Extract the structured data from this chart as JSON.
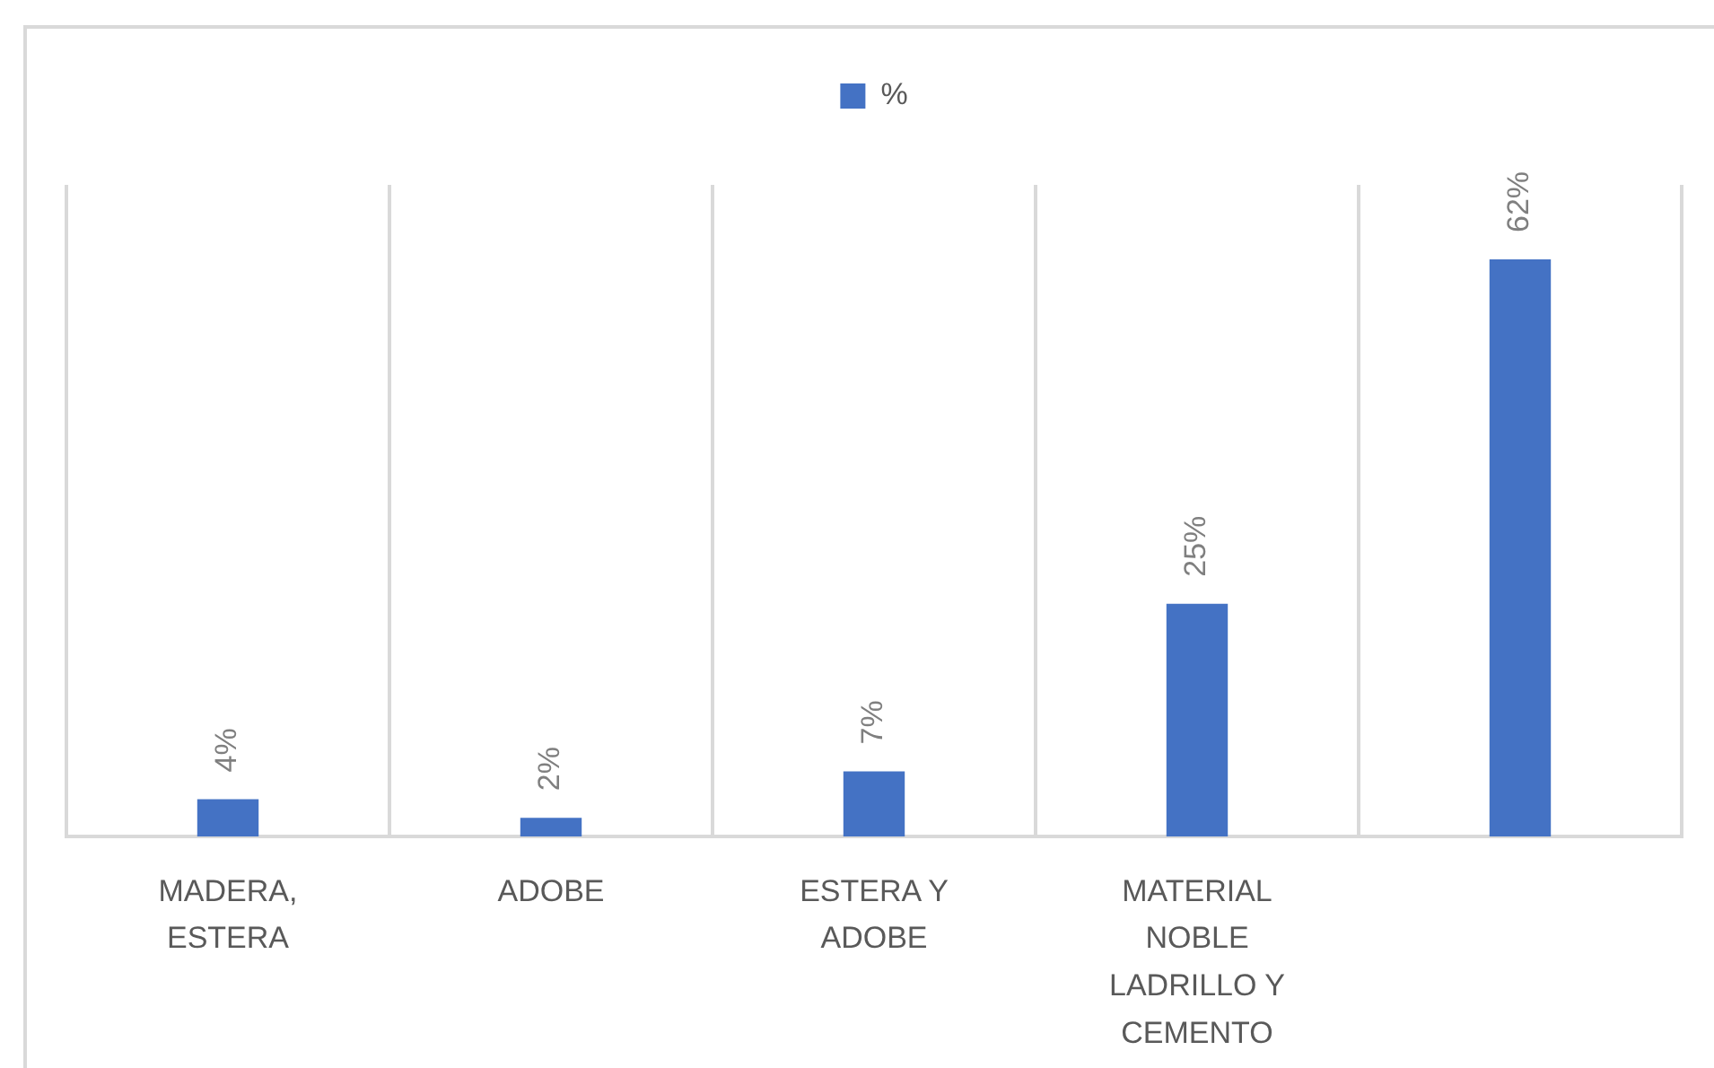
{
  "chart_data": {
    "type": "bar",
    "categories": [
      "MADERA, ESTERA",
      "ADOBE",
      "ESTERA Y ADOBE",
      "MATERIAL NOBLE LADRILLO Y CEMENTO",
      null
    ],
    "series": [
      {
        "name": "%",
        "color": "#4472c4",
        "values": [
          4,
          2,
          7,
          25,
          62
        ],
        "value_labels": [
          "4%",
          "2%",
          "7%",
          "25%",
          "62%"
        ]
      }
    ],
    "grid": "x",
    "legend": "top",
    "tick_labels": "x"
  }
}
